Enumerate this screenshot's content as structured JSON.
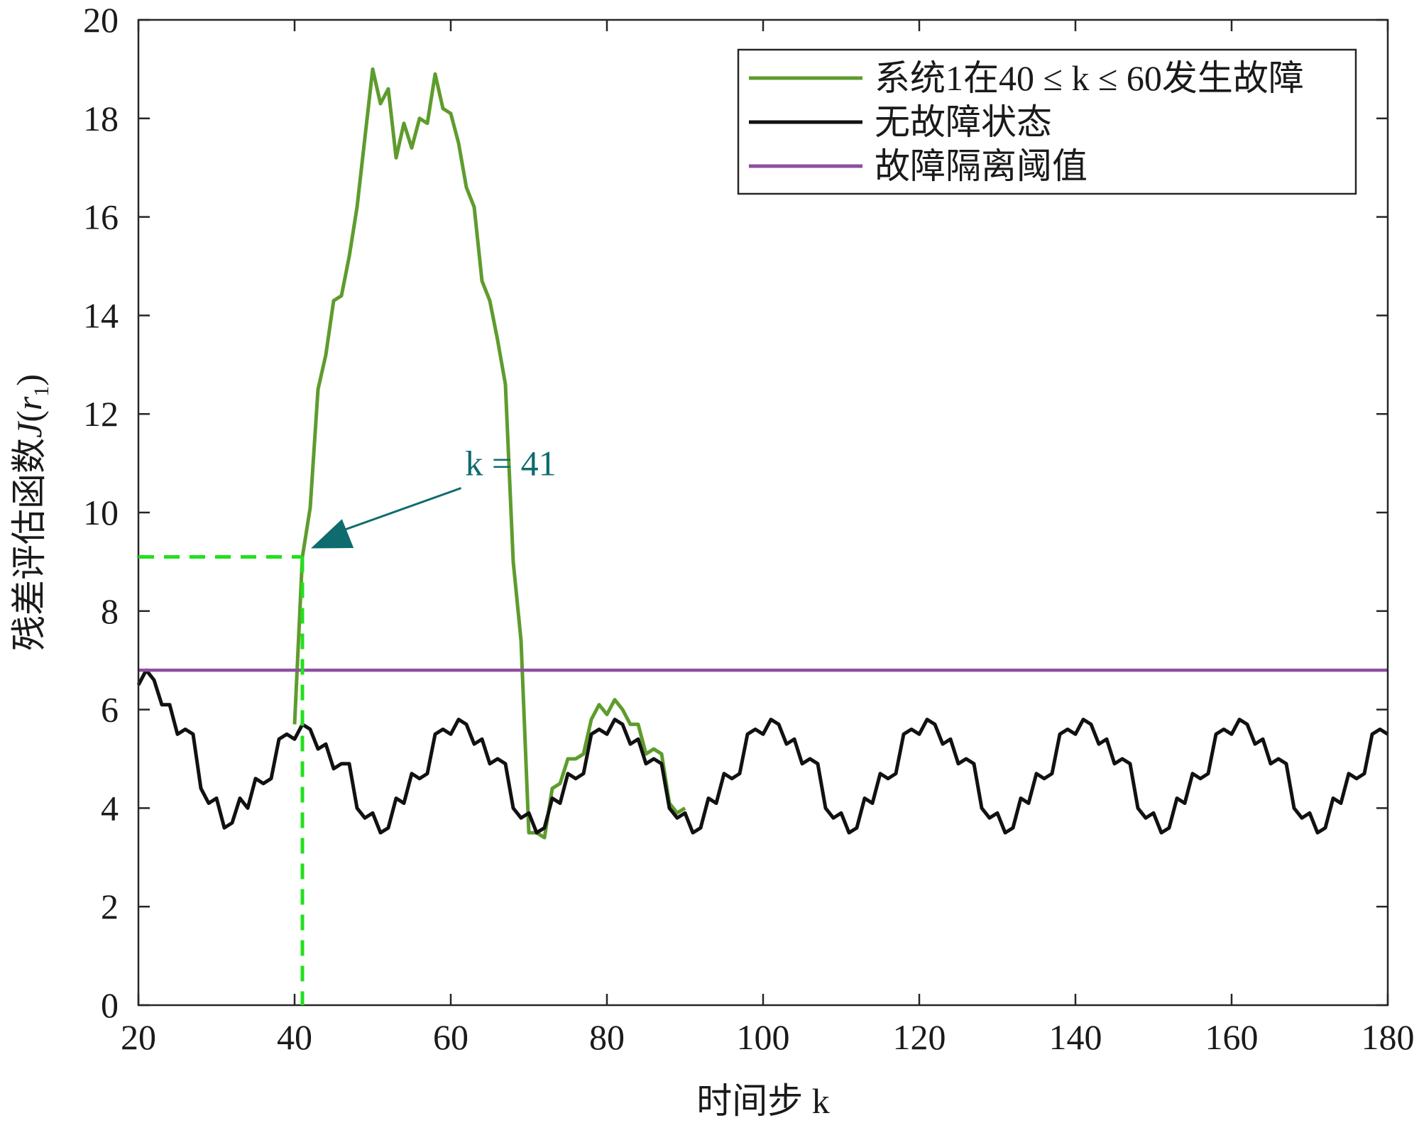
{
  "chart_data": {
    "type": "line",
    "xlabel": "时间步 k",
    "ylabel_main": "残差评估函数",
    "ylabel_J": "J",
    "ylabel_r": "r",
    "ylabel_sub": "1",
    "xlim": [
      20,
      180
    ],
    "ylim": [
      0,
      20
    ],
    "xticks": [
      20,
      40,
      60,
      80,
      100,
      120,
      140,
      160,
      180
    ],
    "yticks": [
      0,
      2,
      4,
      6,
      8,
      10,
      12,
      14,
      16,
      18,
      20
    ],
    "grid": false,
    "legend_position": "top-right",
    "series": [
      {
        "name": "系统1在40 ≤ k ≤ 60发生故障",
        "color": "#5e9c2d",
        "x": [
          40,
          41,
          42,
          43,
          44,
          45,
          46,
          47,
          48,
          49,
          50,
          51,
          52,
          53,
          54,
          55,
          56,
          57,
          58,
          59,
          60,
          61,
          62,
          63,
          64,
          65,
          66,
          67,
          68,
          69,
          70,
          71,
          72,
          73,
          74,
          75,
          76,
          77,
          78,
          79,
          80,
          81,
          82,
          83,
          84,
          85,
          86,
          87,
          88,
          89,
          90
        ],
        "values": [
          5.7,
          9.1,
          10.1,
          12.5,
          13.2,
          14.3,
          14.4,
          15.2,
          16.2,
          17.6,
          19.0,
          18.3,
          18.6,
          17.2,
          17.9,
          17.4,
          18.0,
          17.9,
          18.9,
          18.2,
          18.1,
          17.5,
          16.6,
          16.2,
          14.7,
          14.3,
          13.5,
          12.6,
          9.0,
          7.4,
          3.5,
          3.5,
          3.4,
          4.4,
          4.5,
          5.0,
          5.0,
          5.1,
          5.8,
          6.1,
          5.9,
          6.2,
          6.0,
          5.7,
          5.7,
          5.1,
          5.2,
          5.1,
          4.1,
          3.9,
          4.0
        ]
      },
      {
        "name": "无故障状态",
        "color": "#111111",
        "x": [
          20,
          21,
          22,
          23,
          24,
          25,
          26,
          27,
          28,
          29,
          30,
          31,
          32,
          33,
          34,
          35,
          36,
          37,
          38,
          39,
          40,
          41,
          42,
          43,
          44,
          45,
          46,
          47,
          48,
          49,
          50,
          51,
          52,
          53,
          54,
          55,
          56,
          57,
          58,
          59,
          60,
          61,
          62,
          63,
          64,
          65,
          66,
          67,
          68,
          69,
          70,
          71,
          72,
          73,
          74,
          75,
          76,
          77,
          78,
          79,
          80,
          81,
          82,
          83,
          84,
          85,
          86,
          87,
          88,
          89,
          90,
          91,
          92,
          93,
          94,
          95,
          96,
          97,
          98,
          99,
          100,
          101,
          102,
          103,
          104,
          105,
          106,
          107,
          108,
          109,
          110,
          111,
          112,
          113,
          114,
          115,
          116,
          117,
          118,
          119,
          120,
          121,
          122,
          123,
          124,
          125,
          126,
          127,
          128,
          129,
          130,
          131,
          132,
          133,
          134,
          135,
          136,
          137,
          138,
          139,
          140,
          141,
          142,
          143,
          144,
          145,
          146,
          147,
          148,
          149,
          150,
          151,
          152,
          153,
          154,
          155,
          156,
          157,
          158,
          159,
          160,
          161,
          162,
          163,
          164,
          165,
          166,
          167,
          168,
          169,
          170,
          171,
          172,
          173,
          174,
          175,
          176,
          177,
          178,
          179,
          180
        ],
        "values": [
          6.5,
          6.8,
          6.6,
          6.1,
          6.1,
          5.5,
          5.6,
          5.5,
          4.4,
          4.1,
          4.2,
          3.6,
          3.7,
          4.2,
          4.0,
          4.6,
          4.5,
          4.6,
          5.4,
          5.5,
          5.4,
          5.7,
          5.6,
          5.2,
          5.3,
          4.8,
          4.9,
          4.9,
          4.0,
          3.8,
          3.9,
          3.5,
          3.6,
          4.2,
          4.1,
          4.7,
          4.6,
          4.7,
          5.5,
          5.6,
          5.5,
          5.8,
          5.7,
          5.3,
          5.4,
          4.9,
          5.0,
          4.9,
          4.0,
          3.8,
          3.9,
          3.5,
          3.6,
          4.2,
          4.1,
          4.7,
          4.6,
          4.7,
          5.5,
          5.6,
          5.5,
          5.8,
          5.7,
          5.3,
          5.4,
          4.9,
          5.0,
          4.9,
          4.0,
          3.8,
          3.9,
          3.5,
          3.6,
          4.2,
          4.1,
          4.7,
          4.6,
          4.7,
          5.5,
          5.6,
          5.5,
          5.8,
          5.7,
          5.3,
          5.4,
          4.9,
          5.0,
          4.9,
          4.0,
          3.8,
          3.9,
          3.5,
          3.6,
          4.2,
          4.1,
          4.7,
          4.6,
          4.7,
          5.5,
          5.6,
          5.5,
          5.8,
          5.7,
          5.3,
          5.4,
          4.9,
          5.0,
          4.9,
          4.0,
          3.8,
          3.9,
          3.5,
          3.6,
          4.2,
          4.1,
          4.7,
          4.6,
          4.7,
          5.5,
          5.6,
          5.5,
          5.8,
          5.7,
          5.3,
          5.4,
          4.9,
          5.0,
          4.9,
          4.0,
          3.8,
          3.9,
          3.5,
          3.6,
          4.2,
          4.1,
          4.7,
          4.6,
          4.7,
          5.5,
          5.6,
          5.5,
          5.8,
          5.7,
          5.3,
          5.4,
          4.9,
          5.0,
          4.9,
          4.0,
          3.8,
          3.9,
          3.5,
          3.6,
          4.2,
          4.1,
          4.7,
          4.6,
          4.7,
          5.5,
          5.6,
          5.5
        ]
      },
      {
        "name": "故障隔离阈值",
        "color": "#8e4fa0",
        "x": [
          20,
          180
        ],
        "values": [
          6.8,
          6.8
        ]
      }
    ],
    "annotation": {
      "text": "k = 41",
      "color": "#0e6b6e",
      "x": 41,
      "y": 9.1,
      "text_anchor": [
        39.5,
        11
      ],
      "dashed_color": "#22e01e"
    }
  }
}
